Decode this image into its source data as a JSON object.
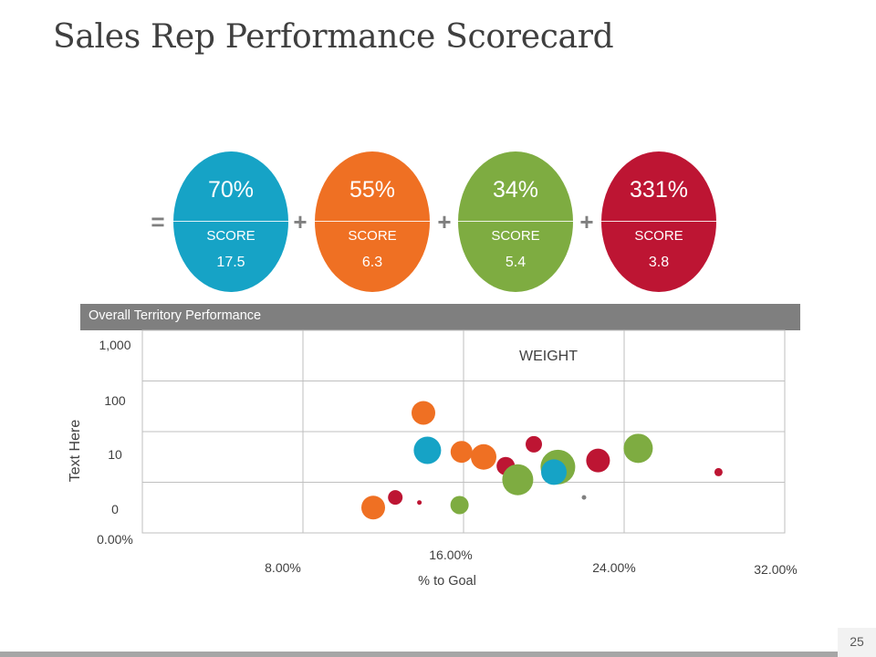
{
  "page": {
    "title": "Sales Rep Performance Scorecard",
    "page_number": "25"
  },
  "scores": {
    "operators": [
      "=",
      "+",
      "+",
      "+"
    ],
    "items": [
      {
        "percent": "70%",
        "label": "SCORE",
        "value": "17.5",
        "color": "#16a3c6"
      },
      {
        "percent": "55%",
        "label": "SCORE",
        "value": "6.3",
        "color": "#ef7023"
      },
      {
        "percent": "34%",
        "label": "SCORE",
        "value": "5.4",
        "color": "#7eac41"
      },
      {
        "percent": "331%",
        "label": "SCORE",
        "value": "3.8",
        "color": "#bd1533"
      }
    ]
  },
  "panel": {
    "header": "Overall Territory Performance"
  },
  "chart_data": {
    "type": "scatter",
    "subtype": "bubble",
    "title": "Overall Territory Performance",
    "xlabel": "% to Goal",
    "ylabel": "Text Here",
    "annotation": "WEIGHT",
    "x_ticks": [
      "0.00%",
      "8.00%",
      "16.00%",
      "24.00%",
      "32.00%"
    ],
    "y_ticks": [
      "0",
      "10",
      "100",
      "1,000"
    ],
    "xlim": [
      0,
      32
    ],
    "y_bands": 4,
    "grid": true,
    "colors": {
      "blue": "#16a3c6",
      "orange": "#ef7023",
      "green": "#7eac41",
      "red": "#bd1533",
      "gray": "#808080"
    },
    "points": [
      {
        "x": 11.5,
        "y": 0.5,
        "size": 13,
        "color": "orange"
      },
      {
        "x": 12.6,
        "y": 0.7,
        "size": 8,
        "color": "red"
      },
      {
        "x": 13.8,
        "y": 0.6,
        "size": 2.5,
        "color": "red"
      },
      {
        "x": 14.0,
        "y": 2.37,
        "size": 13,
        "color": "orange"
      },
      {
        "x": 14.2,
        "y": 1.63,
        "size": 15,
        "color": "blue"
      },
      {
        "x": 15.8,
        "y": 0.55,
        "size": 10,
        "color": "green"
      },
      {
        "x": 15.9,
        "y": 1.6,
        "size": 12,
        "color": "orange"
      },
      {
        "x": 17.0,
        "y": 1.5,
        "size": 14,
        "color": "orange"
      },
      {
        "x": 18.1,
        "y": 1.32,
        "size": 10,
        "color": "red"
      },
      {
        "x": 18.7,
        "y": 1.05,
        "size": 17,
        "color": "green"
      },
      {
        "x": 19.5,
        "y": 1.75,
        "size": 9,
        "color": "red"
      },
      {
        "x": 20.7,
        "y": 1.3,
        "size": 19,
        "color": "green"
      },
      {
        "x": 20.5,
        "y": 1.2,
        "size": 14,
        "color": "blue"
      },
      {
        "x": 22.0,
        "y": 0.7,
        "size": 2.5,
        "color": "gray"
      },
      {
        "x": 22.7,
        "y": 1.43,
        "size": 13,
        "color": "red"
      },
      {
        "x": 24.7,
        "y": 1.67,
        "size": 16,
        "color": "green"
      },
      {
        "x": 28.7,
        "y": 1.2,
        "size": 4.5,
        "color": "red"
      }
    ]
  }
}
